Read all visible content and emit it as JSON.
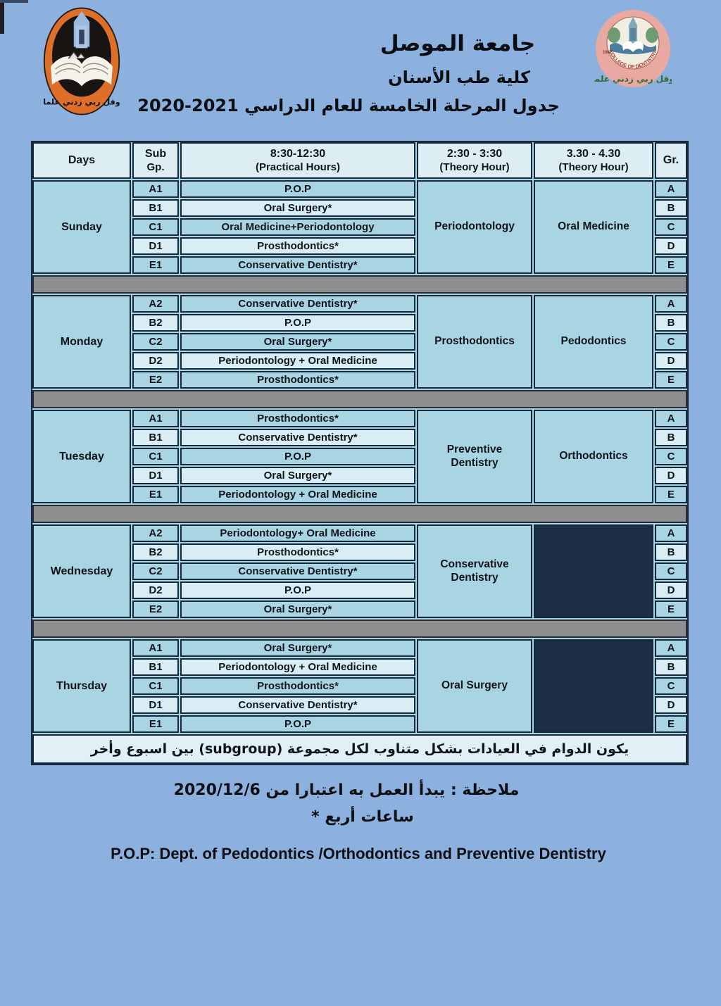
{
  "header": {
    "university_ar": "جامعة الموصل",
    "college_ar": "كلية طب الأسنان",
    "schedule_ar": "جدول المرحلة الخامسة للعام الدراسي 2021-2020"
  },
  "logos": {
    "left": "university-of-mosul-emblem",
    "left_motto_ar": "وقل ربي زدني علما",
    "right": "college-of-dentistry-emblem",
    "right_ring_text": "COLLEGE OF DENTISTRY",
    "right_year": "1982",
    "right_motto_ar": "وقل ربي زدني علما"
  },
  "table": {
    "columns": [
      {
        "line1": "Days",
        "line2": ""
      },
      {
        "line1": "Sub",
        "line2": "Gp."
      },
      {
        "line1": "8:30-12:30",
        "line2": "(Practical Hours)"
      },
      {
        "line1": "2:30 - 3:30",
        "line2": "(Theory Hour)"
      },
      {
        "line1": "3.30 - 4.30",
        "line2": "(Theory Hour)"
      },
      {
        "line1": "Gr.",
        "line2": ""
      }
    ],
    "days": [
      {
        "day": "Sunday",
        "sub": [
          "A1",
          "B1",
          "C1",
          "D1",
          "E1"
        ],
        "practical": [
          "P.O.P",
          "Oral Surgery*",
          "Oral Medicine+Periodontology",
          "Prosthodontics*",
          "Conservative Dentistry*"
        ],
        "theory1": "Periodontology",
        "theory2": "Oral Medicine",
        "gr": [
          "A",
          "B",
          "C",
          "D",
          "E"
        ]
      },
      {
        "day": "Monday",
        "sub": [
          "A2",
          "B2",
          "C2",
          "D2",
          "E2"
        ],
        "practical": [
          "Conservative Dentistry*",
          "P.O.P",
          "Oral Surgery*",
          "Periodontology + Oral Medicine",
          "Prosthodontics*"
        ],
        "theory1": "Prosthodontics",
        "theory2": "Pedodontics",
        "gr": [
          "A",
          "B",
          "C",
          "D",
          "E"
        ]
      },
      {
        "day": "Tuesday",
        "sub": [
          "A1",
          "B1",
          "C1",
          "D1",
          "E1"
        ],
        "practical": [
          "Prosthodontics*",
          "Conservative Dentistry*",
          "P.O.P",
          "Oral Surgery*",
          "Periodontology + Oral Medicine"
        ],
        "theory1": "Preventive Dentistry",
        "theory2": "Orthodontics",
        "gr": [
          "A",
          "B",
          "C",
          "D",
          "E"
        ]
      },
      {
        "day": "Wednesday",
        "sub": [
          "A2",
          "B2",
          "C2",
          "D2",
          "E2"
        ],
        "practical": [
          "Periodontology+ Oral Medicine",
          "Prosthodontics*",
          "Conservative Dentistry*",
          "P.O.P",
          "Oral Surgery*"
        ],
        "theory1": "Conservative Dentistry",
        "theory2": "",
        "gr": [
          "A",
          "B",
          "C",
          "D",
          "E"
        ]
      },
      {
        "day": "Thursday",
        "sub": [
          "A1",
          "B1",
          "C1",
          "D1",
          "E1"
        ],
        "practical": [
          "Oral Surgery*",
          "Periodontology + Oral Medicine",
          "Prosthodontics*",
          "Conservative Dentistry*",
          "P.O.P"
        ],
        "theory1": "Oral Surgery",
        "theory2": "",
        "gr": [
          "A",
          "B",
          "C",
          "D",
          "E"
        ]
      }
    ],
    "footnote_ar": "يكون الدوام في العيادات بشكل متناوب لكل مجموعة (subgroup) بين اسبوع وأخر"
  },
  "notes": {
    "note1_ar": "ملاحظة : يبدأ العمل به اعتبارا من  2020/12/6",
    "note2_ar": "* أربع ‎ساعات",
    "pop_definition": "P.O.P: Dept. of Pedodontics /Orthodontics and Preventive Dentistry"
  },
  "colors": {
    "page_bg": "#8db1de",
    "cell_blue": "#a9d4e2",
    "cell_light": "#d9edf5",
    "header_bg": "#dcedf4",
    "empty_navy": "#1c2e45",
    "separator_gray": "#8f8f8f",
    "border_dark": "#16293c"
  }
}
